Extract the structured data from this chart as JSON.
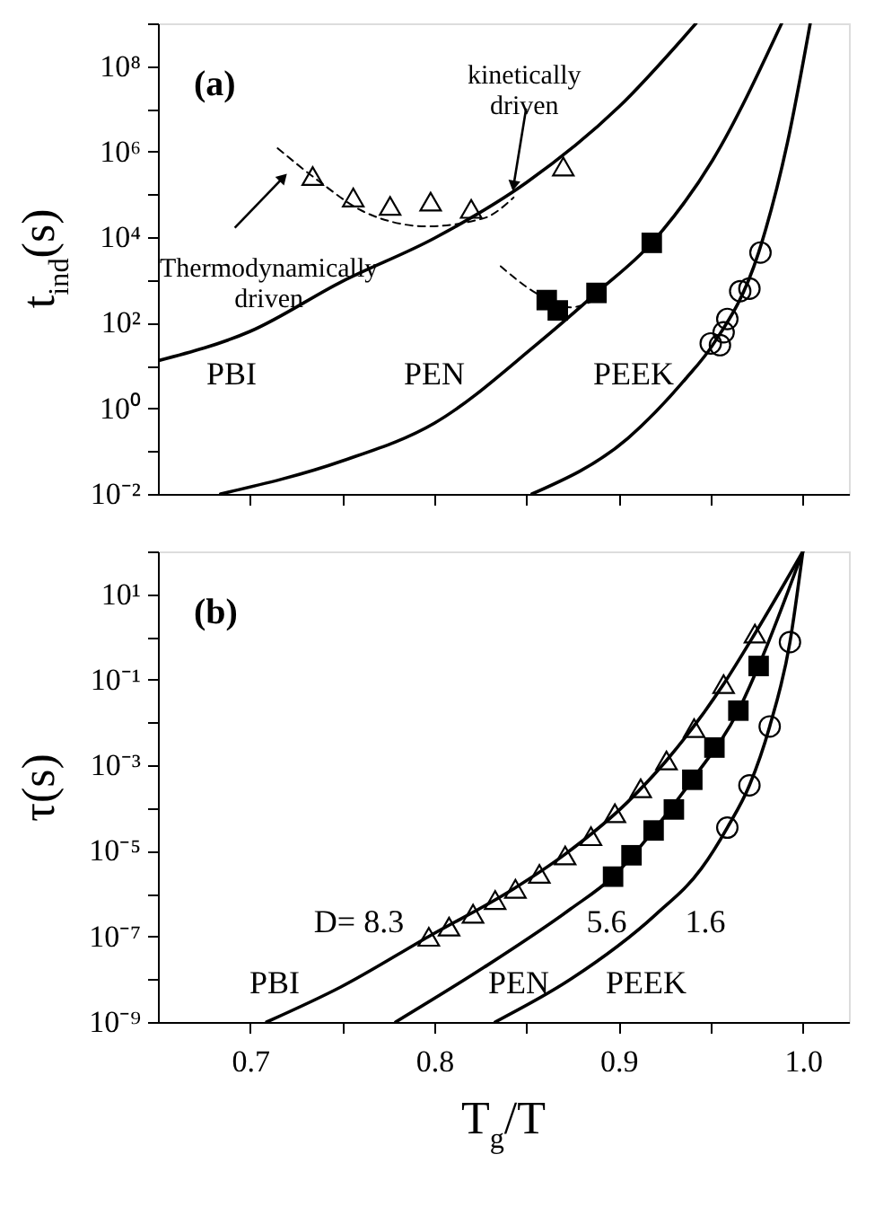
{
  "chart_data": [
    {
      "type": "line",
      "ylabel": "t$_{ind}$(s)",
      "log": "y",
      "grid": false,
      "tick_labels": "y",
      "xlim": [
        0.65,
        1.025
      ],
      "xticks": [
        0.7,
        0.75,
        0.8,
        0.85,
        0.9,
        0.95,
        1
      ],
      "ylim": [
        0.01,
        1000000000
      ],
      "yticks": [
        {
          "value": 0.01,
          "label": "10⁻²"
        },
        {
          "value": 0.1,
          "label": null
        },
        {
          "value": 1,
          "label": "10⁰"
        },
        {
          "value": 10,
          "label": null
        },
        {
          "value": 100,
          "label": "10²"
        },
        {
          "value": 1000,
          "label": null
        },
        {
          "value": 10000,
          "label": "10⁴"
        },
        {
          "value": 100000,
          "label": null
        },
        {
          "value": 1000000,
          "label": "10⁶"
        },
        {
          "value": 10000000,
          "label": null
        },
        {
          "value": 100000000,
          "label": "10⁸"
        },
        {
          "value": 1000000000,
          "label": null
        }
      ],
      "series": [
        {
          "color": "#000000",
          "marker": "none",
          "line_style": "solid",
          "x": [
            0.65,
            0.7,
            0.75,
            0.8,
            0.85,
            0.9,
            0.942
          ],
          "values": [
            13,
            63,
            930,
            9500,
            190000,
            11000000,
            1000000000
          ]
        },
        {
          "color": "#000000",
          "marker": "none",
          "line_style": "solid",
          "x": [
            0.684,
            0.75,
            0.8,
            0.855,
            0.888,
            0.918,
            0.951,
            0.9885
          ],
          "values": [
            0.01,
            0.059,
            0.45,
            30,
            500,
            7400,
            630000,
            1000000000
          ]
        },
        {
          "color": "#000000",
          "marker": "none",
          "line_style": "solid",
          "x": [
            0.853,
            0.905,
            0.936,
            0.951,
            0.976,
            0.9916,
            1.004
          ],
          "values": [
            0.01,
            0.2,
            4.7,
            30,
            4400,
            1600000,
            1000000000
          ]
        },
        {
          "color": "#000000",
          "marker": "none",
          "line_style": "dashed",
          "x": [
            0.715,
            0.737,
            0.762,
            0.796,
            0.827,
            0.843
          ],
          "values": [
            1200000,
            210000,
            39000,
            18000,
            28000,
            85000
          ]
        },
        {
          "color": "#000000",
          "marker": "none",
          "line_style": "dashed",
          "x": [
            0.836,
            0.855,
            0.874,
            0.888
          ],
          "values": [
            2100,
            500,
            230,
            360
          ]
        },
        {
          "type": "scatter",
          "color": "#000000",
          "marker": "triangle",
          "x": [
            0.734,
            0.756,
            0.776,
            0.798,
            0.82,
            0.87
          ],
          "values": [
            270000,
            85000,
            54000,
            68000,
            46000,
            450000
          ]
        },
        {
          "type": "scatter",
          "color": "#000000",
          "marker": "square",
          "x": [
            0.861,
            0.867,
            0.888,
            0.918
          ],
          "values": [
            340,
            195,
            500,
            7400
          ]
        },
        {
          "type": "scatter",
          "color": "#000000",
          "marker": "circle",
          "x": [
            0.95,
            0.955,
            0.957,
            0.959,
            0.966,
            0.971,
            0.977
          ],
          "values": [
            33,
            30,
            60,
            123,
            550,
            630,
            4400
          ]
        }
      ],
      "annotations": [
        "(a)",
        {
          "text": "kinetically\ndriven",
          "x": 0.843,
          "y": 160000
        },
        {
          "text": "Thermodynamically\ndriven",
          "x": 0.718,
          "y": 250000
        },
        "PBI",
        "PEN",
        "PEEK"
      ]
    },
    {
      "type": "line",
      "xlabel": "T$_{g}$/T",
      "ylabel": "τ(s)",
      "log": "y",
      "grid": false,
      "xlim": [
        0.65,
        1.025
      ],
      "xticks": [
        {
          "value": 0.7,
          "label": "0.7"
        },
        {
          "value": 0.75,
          "label": null
        },
        {
          "value": 0.8,
          "label": "0.8"
        },
        {
          "value": 0.85,
          "label": null
        },
        {
          "value": 0.9,
          "label": "0.9"
        },
        {
          "value": 0.95,
          "label": null
        },
        {
          "value": 1.0,
          "label": "1.0"
        }
      ],
      "ylim": [
        1e-09,
        100
      ],
      "yticks": [
        {
          "value": 1e-09,
          "label": "10⁻⁹"
        },
        {
          "value": 1e-08,
          "label": null
        },
        {
          "value": 1e-07,
          "label": "10⁻⁷"
        },
        {
          "value": 1e-06,
          "label": null
        },
        {
          "value": 1e-05,
          "label": "10⁻⁵"
        },
        {
          "value": 0.0001,
          "label": null
        },
        {
          "value": 0.001,
          "label": "10⁻³"
        },
        {
          "value": 0.01,
          "label": null
        },
        {
          "value": 0.1,
          "label": "10⁻¹"
        },
        {
          "value": 1,
          "label": null
        },
        {
          "value": 10,
          "label": "10¹"
        },
        {
          "value": 100,
          "label": null
        }
      ],
      "series": [
        {
          "color": "#000000",
          "marker": "none",
          "line_style": "solid",
          "x": [
            0.709,
            0.749,
            0.797,
            0.843,
            0.87,
            0.905,
            0.926,
            0.957,
            0.974,
            1.0
          ],
          "values": [
            1e-09,
            6.5e-09,
            1e-07,
            1.3e-06,
            7.8e-06,
            0.00014,
            0.0013,
            0.079,
            1.2,
            100
          ]
        },
        {
          "color": "#000000",
          "marker": "none",
          "line_style": "solid",
          "x": [
            0.779,
            0.827,
            0.874,
            0.897,
            0.919,
            0.94,
            0.965,
            0.976,
            1.0
          ],
          "values": [
            1e-09,
            1.9e-08,
            4.4e-07,
            2.5e-06,
            3e-05,
            0.00046,
            0.019,
            0.21,
            100
          ]
        },
        {
          "color": "#000000",
          "marker": "none",
          "line_style": "solid",
          "x": [
            0.833,
            0.874,
            0.92,
            0.945,
            0.959,
            0.971,
            0.982,
            0.993,
            1.0
          ],
          "values": [
            1e-09,
            1e-08,
            3.2e-07,
            3.9e-06,
            3.5e-05,
            0.00034,
            0.0081,
            0.76,
            100
          ]
        },
        {
          "type": "scatter",
          "color": "#000000",
          "marker": "triangle",
          "x": [
            0.797,
            0.808,
            0.821,
            0.833,
            0.844,
            0.857,
            0.871,
            0.885,
            0.898,
            0.912,
            0.926,
            0.941,
            0.957,
            0.974
          ],
          "values": [
            9.8e-08,
            1.7e-07,
            3.4e-07,
            7.1e-07,
            1.3e-06,
            2.9e-06,
            7.8e-06,
            2.2e-05,
            7.6e-05,
            0.00029,
            0.0013,
            0.0074,
            0.079,
            1.2
          ]
        },
        {
          "type": "scatter",
          "color": "#000000",
          "marker": "square",
          "x": [
            0.897,
            0.907,
            0.919,
            0.93,
            0.94,
            0.952,
            0.965,
            0.976
          ],
          "values": [
            2.5e-06,
            7.9e-06,
            3e-05,
            9.3e-05,
            0.00046,
            0.0026,
            0.019,
            0.21
          ]
        },
        {
          "type": "scatter",
          "color": "#000000",
          "marker": "circle",
          "x": [
            0.959,
            0.971,
            0.982,
            0.993
          ],
          "values": [
            3.5e-05,
            0.00034,
            0.0081,
            0.76
          ]
        }
      ],
      "annotations": [
        "(b)",
        "D= 8.3",
        "5.6",
        "1.6",
        "PBI",
        "PEN",
        "PEEK"
      ]
    }
  ]
}
